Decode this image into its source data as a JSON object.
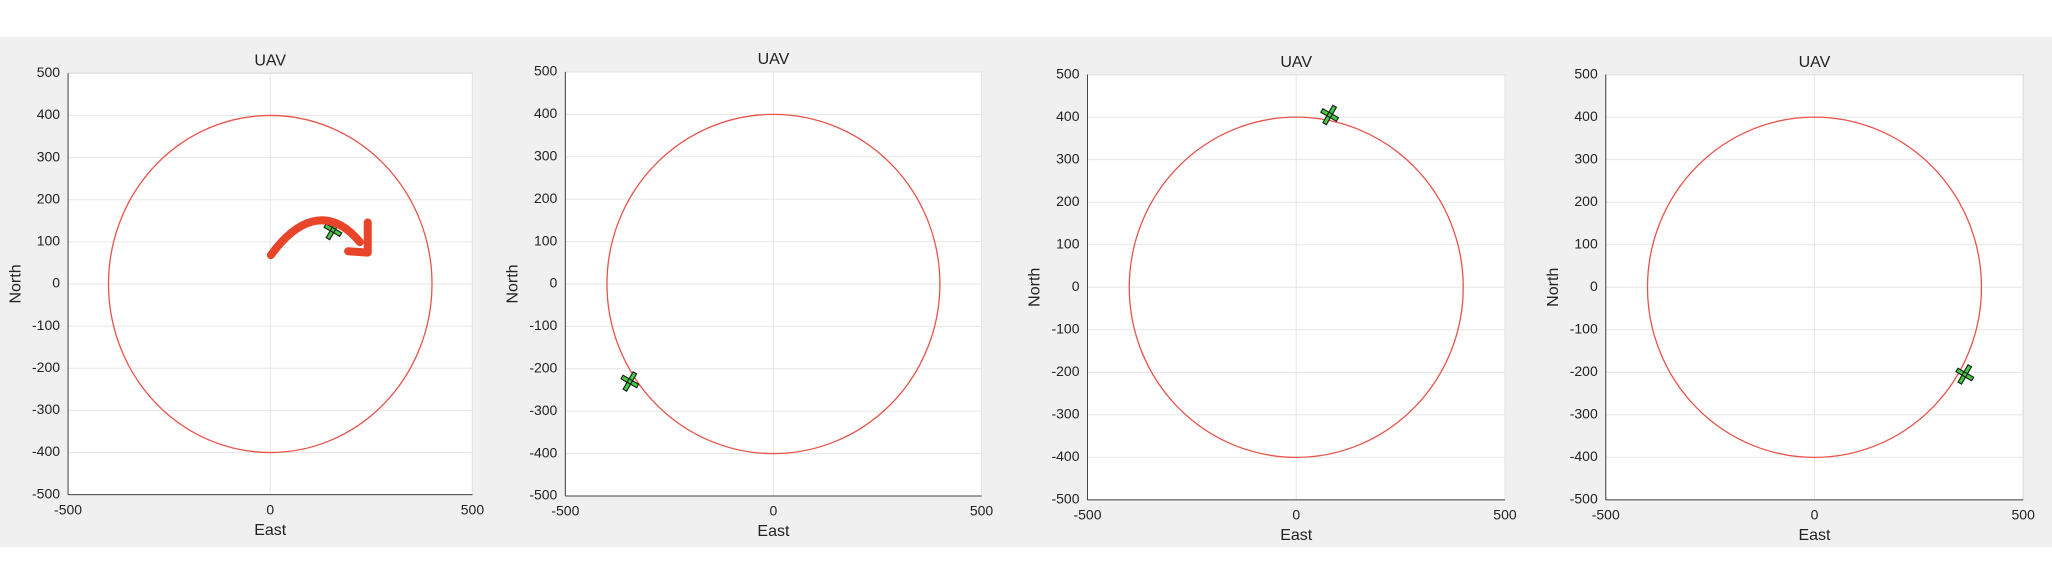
{
  "chart_data": [
    {
      "type": "scatter",
      "title": "UAV",
      "x_label": "East",
      "y_label": "North",
      "xlim": [
        -500,
        500
      ],
      "ylim": [
        -500,
        500
      ],
      "xticks": [
        -500,
        0,
        500
      ],
      "yticks": [
        -500,
        -400,
        -300,
        -200,
        -100,
        0,
        100,
        200,
        300,
        400,
        500
      ],
      "grid": true,
      "circle": {
        "radius": 400,
        "color": "#e8534a"
      },
      "x": [
        155
      ],
      "y": [
        128
      ],
      "color": "#3dd13d"
    },
    {
      "type": "scatter",
      "title": "UAV",
      "x_label": "East",
      "y_label": "North",
      "xlim": [
        -500,
        500
      ],
      "ylim": [
        -500,
        500
      ],
      "xticks": [
        -500,
        0,
        500
      ],
      "yticks": [
        -500,
        -400,
        -300,
        -200,
        -100,
        0,
        100,
        200,
        300,
        400,
        500
      ],
      "grid": true,
      "circle": {
        "radius": 400,
        "color": "#e8534a"
      },
      "x": [
        -345
      ],
      "y": [
        -230
      ],
      "color": "#3dd13d"
    },
    {
      "type": "scatter",
      "title": "UAV",
      "x_label": "East",
      "y_label": "North",
      "xlim": [
        -500,
        500
      ],
      "ylim": [
        -500,
        500
      ],
      "xticks": [
        -500,
        0,
        500
      ],
      "yticks": [
        -500,
        -400,
        -300,
        -200,
        -100,
        0,
        100,
        200,
        300,
        400,
        500
      ],
      "grid": true,
      "circle": {
        "radius": 400,
        "color": "#e8534a"
      },
      "x": [
        80
      ],
      "y": [
        405
      ],
      "color": "#3dd13d"
    },
    {
      "type": "scatter",
      "title": "UAV",
      "x_label": "East",
      "y_label": "North",
      "xlim": [
        -500,
        500
      ],
      "ylim": [
        -500,
        500
      ],
      "xticks": [
        -500,
        0,
        500
      ],
      "yticks": [
        -500,
        -400,
        -300,
        -200,
        -100,
        0,
        100,
        200,
        300,
        400,
        500
      ],
      "grid": true,
      "circle": {
        "radius": 400,
        "color": "#e8534a"
      },
      "x": [
        360
      ],
      "y": [
        -205
      ],
      "color": "#3dd13d"
    }
  ]
}
